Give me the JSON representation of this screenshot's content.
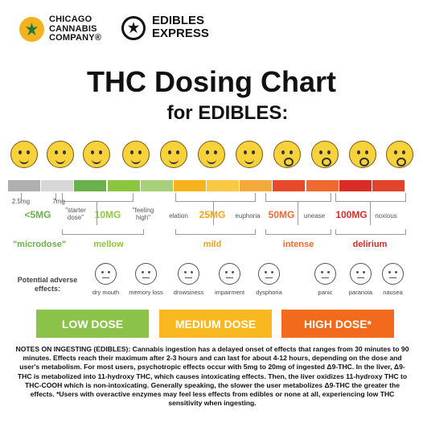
{
  "logos": {
    "brand1": [
      "CHICAGO",
      "CANNABIS",
      "COMPANY®"
    ],
    "brand2": [
      "EDIBLES",
      "EXPRESS"
    ]
  },
  "title": "THC Dosing Chart",
  "subtitle": "for EDIBLES:",
  "colors": {
    "scale": [
      "#b0b0b0",
      "#d7d7d7",
      "#6ab04c",
      "#8cc63f",
      "#a8d07a",
      "#f7b21c",
      "#f9c844",
      "#f3a93c",
      "#e64a2b",
      "#ee6a2e",
      "#d92c26",
      "#e0452c"
    ],
    "low": "#8bc34a",
    "medium": "#f9b820",
    "high": "#f26b1d"
  },
  "scale_labels": {
    "dose_small": [
      "2.5mg",
      "7mg"
    ],
    "starter": "\"starter dose\"",
    "feeling": "\"feeling high\"",
    "elation": "elation",
    "euphoria": "euphoria",
    "unease": "unease",
    "noxious": "noxious"
  },
  "doses": {
    "d5": "<5MG",
    "d10": "10MG",
    "d25": "25MG",
    "d50": "50MG",
    "d100": "100MG"
  },
  "categories": {
    "microdose": "\"microdose\"",
    "mellow": "mellow",
    "mild": "mild",
    "intense": "intense",
    "delirium": "delirium"
  },
  "adverse": {
    "heading": "Potential adverse effects:",
    "items": [
      "dry mouth",
      "memory loss",
      "drowsiness",
      "impairment",
      "dysphoria",
      "panic",
      "paranoia",
      "nausea"
    ]
  },
  "boxes": {
    "low": "LOW DOSE",
    "medium": "MEDIUM DOSE",
    "high": "HIGH DOSE*"
  },
  "notes": "NOTES ON INGESTING (EDIBLES):  Cannabis ingestion has a delayed onset of effects that ranges from 30 minutes to 90 minutes. Effects reach their maximum after 2-3 hours and can last for about 4-12 hours, depending on the dose and user's metabolism. For most users, psychotropic effects occur with 5mg to 20mg of ingested Δ9-THC. In the liver, Δ9-THC is metabolized into 11-hydroxy THC, which causes intoxicating effects. Then, the liver oxidizes 11-hydroxy THC to THC-COOH which is non-intoxicating. Generally speaking, the slower the user metabolizes Δ9-THC the greater the effects. *Users with overactive enzymes may feel less effects from edibles or none at all, experiencing low THC sensitivity when ingesting."
}
